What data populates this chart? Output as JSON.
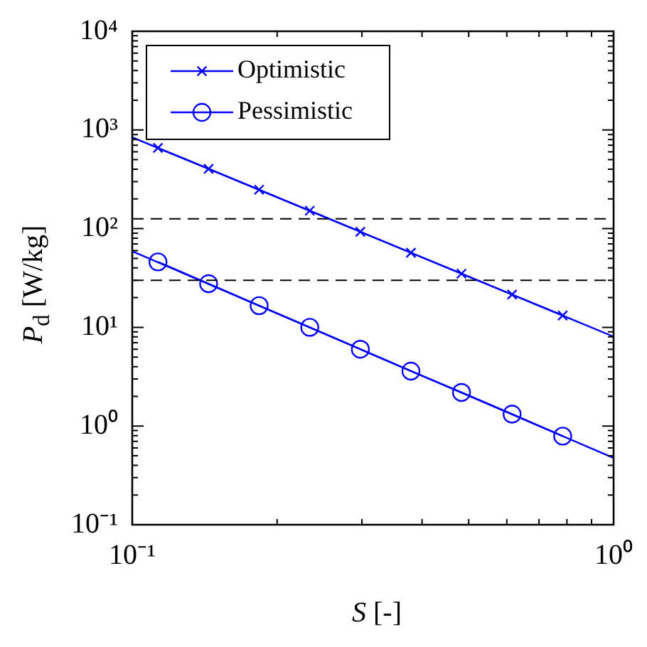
{
  "chart_data": {
    "type": "line",
    "xlabel": "S [-]",
    "ylabel": "P$_{d}$ [W/kg]",
    "log": "xy",
    "xlim": [
      0.1,
      1
    ],
    "xticks": [
      {
        "value": 0.1,
        "label": "10⁻¹"
      },
      {
        "value": 1,
        "label": "10⁰"
      }
    ],
    "ylim": [
      0.1,
      10000
    ],
    "yticks": [
      {
        "value": 0.1,
        "label": "10⁻¹"
      },
      {
        "value": 1,
        "label": "10⁰"
      },
      {
        "value": 10,
        "label": "10¹"
      },
      {
        "value": 100,
        "label": "10²"
      },
      {
        "value": 1000,
        "label": "10³"
      },
      {
        "value": 10000,
        "label": "10⁴"
      }
    ],
    "grid": false,
    "legend": "top left",
    "series": [
      {
        "color": "#0000ff",
        "marker": "none",
        "x": [
          0.1,
          1
        ],
        "values": [
          843,
          8.05
        ]
      },
      {
        "color": "#0000ff",
        "marker": "none",
        "x": [
          0.1,
          1
        ],
        "values": [
          59,
          0.475
        ]
      },
      {
        "name": "Optimistic",
        "color": "#0000ff",
        "marker": "cross",
        "x": [
          0.1131,
          0.1441,
          0.1835,
          0.2338,
          0.2978,
          0.3793,
          0.4831,
          0.6154,
          0.7839
        ],
        "values": [
          658,
          404,
          248,
          152,
          93,
          57,
          35,
          21.5,
          13.2
        ]
      },
      {
        "name": "Pessimistic",
        "color": "#0000ff",
        "marker": "circle",
        "x": [
          0.1131,
          0.1441,
          0.1835,
          0.2338,
          0.2978,
          0.3793,
          0.4831,
          0.6154,
          0.7839
        ],
        "values": [
          46,
          27.7,
          16.6,
          10.0,
          6.0,
          3.6,
          2.19,
          1.32,
          0.79
        ]
      }
    ],
    "ref_lines": [
      {
        "axis": "y",
        "value": 126,
        "color": "#000000",
        "line_style": "dashed"
      },
      {
        "axis": "y",
        "value": 30,
        "color": "#000000",
        "line_style": "dashed"
      }
    ]
  }
}
